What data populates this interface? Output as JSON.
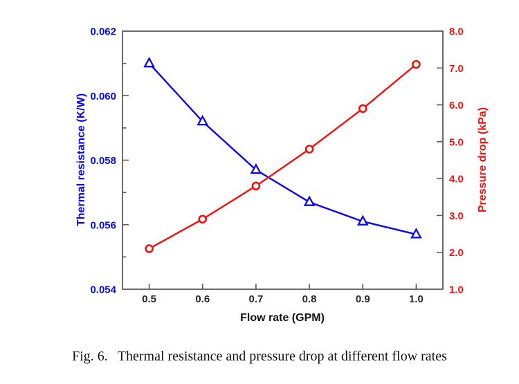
{
  "figure": {
    "caption": {
      "label": "Fig. 6.",
      "text": "Thermal resistance and pressure drop at different flow rates"
    }
  },
  "chart_data": {
    "type": "line",
    "x": [
      0.5,
      0.6,
      0.7,
      0.8,
      0.9,
      1.0
    ],
    "series": [
      {
        "name": "Thermal resistance",
        "axis": "left",
        "marker": "triangle-up",
        "color": "#0808ee",
        "values": [
          0.061,
          0.0592,
          0.0577,
          0.0567,
          0.0561,
          0.0557
        ]
      },
      {
        "name": "Pressure drop",
        "axis": "right",
        "marker": "circle",
        "color": "#f50f0f",
        "values": [
          2.1,
          2.9,
          3.8,
          4.8,
          5.9,
          7.1
        ]
      }
    ],
    "x_axis": {
      "title": "Flow rate (GPM)",
      "title_color": "#111111",
      "label_color": "#262626",
      "range": [
        0.45,
        1.05
      ],
      "major": [
        {
          "value": 0.5,
          "label": "0.5"
        },
        {
          "value": 0.6,
          "label": "0.6"
        },
        {
          "value": 0.7,
          "label": "0.7"
        },
        {
          "value": 0.8,
          "label": "0.8"
        },
        {
          "value": 0.9,
          "label": "0.9"
        },
        {
          "value": 1.0,
          "label": "1.0"
        }
      ]
    },
    "left_axis": {
      "title": "Thermal resistance (K/W)",
      "color": "#0808ee",
      "range": [
        0.054,
        0.062
      ],
      "major": [
        {
          "value": 0.054,
          "label": "0.054"
        },
        {
          "value": 0.056,
          "label": "0.056"
        },
        {
          "value": 0.058,
          "label": "0.058"
        },
        {
          "value": 0.06,
          "label": "0.060"
        },
        {
          "value": 0.062,
          "label": "0.062"
        }
      ],
      "minor": [
        0.055,
        0.057,
        0.059,
        0.061
      ]
    },
    "right_axis": {
      "title": "Pressure drop (kPa)",
      "color": "#f50f0f",
      "range": [
        1.0,
        8.0
      ],
      "major": [
        {
          "value": 1.0,
          "label": "1.0"
        },
        {
          "value": 2.0,
          "label": "2.0"
        },
        {
          "value": 3.0,
          "label": "3.0"
        },
        {
          "value": 4.0,
          "label": "4.0"
        },
        {
          "value": 5.0,
          "label": "5.0"
        },
        {
          "value": 6.0,
          "label": "6.0"
        },
        {
          "value": 7.0,
          "label": "7.0"
        },
        {
          "value": 8.0,
          "label": "8.0"
        }
      ]
    },
    "frame_color": "#595959",
    "grid": false,
    "legend": null
  }
}
